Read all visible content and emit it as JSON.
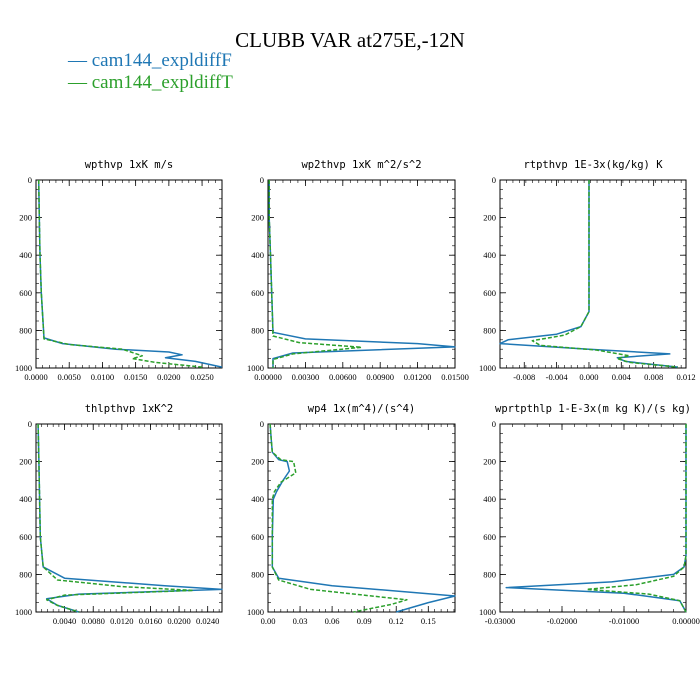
{
  "title": "CLUBB VAR at275E,-12N",
  "legend": [
    {
      "label": "cam144_expldiffF",
      "color": "#1f77b4",
      "dash": "solid"
    },
    {
      "label": "cam144_expldiffT",
      "color": "#2ca02c",
      "dash": "dashed"
    }
  ],
  "chart_data": [
    {
      "type": "line",
      "title": "wpthvp  1xK m/s",
      "xlim": [
        0,
        0.028
      ],
      "ylim": [
        1000,
        0
      ],
      "xticks": [
        0,
        0.005,
        0.01,
        0.015,
        0.02,
        0.025
      ],
      "xtick_labels": [
        "0.0000",
        "0.0050",
        "0.0100",
        "0.0150",
        "0.0200",
        "0.0250"
      ],
      "yticks": [
        0,
        200,
        400,
        600,
        800,
        1000
      ],
      "ytick_labels": [
        "0",
        "200",
        "400",
        "600",
        "800",
        "1000"
      ],
      "series": [
        {
          "name": "cam144_expldiffF",
          "x": [
            0.0004,
            0.0005,
            0.0006,
            0.0008,
            0.0012,
            0.004,
            0.012,
            0.02,
            0.022,
            0.0195,
            0.024,
            0.028
          ],
          "y": [
            0,
            200,
            400,
            600,
            840,
            870,
            900,
            915,
            930,
            945,
            965,
            995
          ]
        },
        {
          "name": "cam144_expldiffT",
          "x": [
            0.0004,
            0.0005,
            0.0006,
            0.0008,
            0.0012,
            0.005,
            0.013,
            0.016,
            0.0145,
            0.018,
            0.025
          ],
          "y": [
            0,
            200,
            400,
            600,
            845,
            875,
            900,
            935,
            950,
            970,
            995
          ]
        }
      ]
    },
    {
      "type": "line",
      "title": "wp2thvp  1xK m^2/s^2",
      "xlim": [
        0,
        0.015
      ],
      "ylim": [
        1000,
        0
      ],
      "xticks": [
        0,
        0.003,
        0.006,
        0.009,
        0.012,
        0.015
      ],
      "xtick_labels": [
        "0.00000",
        "0.00300",
        "0.00600",
        "0.00900",
        "0.01200",
        "0.01500"
      ],
      "yticks": [
        0,
        200,
        400,
        600,
        800,
        1000
      ],
      "ytick_labels": [
        "0",
        "200",
        "400",
        "600",
        "800",
        "1000"
      ],
      "series": [
        {
          "name": "cam144_expldiffF",
          "x": [
            0.0001,
            0.0001,
            0.0002,
            0.0003,
            0.0004,
            0.003,
            0.012,
            0.015,
            0.002,
            0.0004,
            0.0004
          ],
          "y": [
            0,
            200,
            400,
            600,
            810,
            845,
            870,
            888,
            920,
            950,
            1000
          ]
        },
        {
          "name": "cam144_expldiffT",
          "x": [
            0.0001,
            0.0001,
            0.0002,
            0.0003,
            0.0004,
            0.0025,
            0.0075,
            0.002,
            0.0004,
            0.0004
          ],
          "y": [
            0,
            200,
            400,
            600,
            830,
            865,
            890,
            925,
            955,
            1000
          ]
        }
      ]
    },
    {
      "type": "line",
      "title": "rtpthvp  1E-3x(kg/kg) K",
      "xlim": [
        -0.011,
        0.012
      ],
      "ylim": [
        1000,
        0
      ],
      "xticks": [
        -0.008,
        -0.004,
        0,
        0.004,
        0.008,
        0.012
      ],
      "xtick_labels": [
        "-0.008",
        "-0.004",
        "0.000",
        "0.004",
        "0.008",
        "0.012"
      ],
      "yticks": [
        0,
        200,
        400,
        600,
        800,
        1000
      ],
      "ytick_labels": [
        "0",
        "200",
        "400",
        "600",
        "800",
        "1000"
      ],
      "series": [
        {
          "name": "cam144_expldiffF",
          "x": [
            0,
            0,
            0,
            0,
            -0.001,
            -0.004,
            -0.01,
            -0.011,
            0.0,
            0.01,
            0.0035,
            0.0045,
            0.011
          ],
          "y": [
            0,
            200,
            400,
            700,
            780,
            820,
            850,
            870,
            900,
            925,
            945,
            965,
            995
          ]
        },
        {
          "name": "cam144_expldiffT",
          "x": [
            0,
            0,
            0,
            0,
            -0.001,
            -0.003,
            -0.007,
            -0.006,
            0.001,
            0.005,
            0.0035,
            0.005,
            0.011
          ],
          "y": [
            0,
            200,
            400,
            700,
            780,
            825,
            855,
            880,
            905,
            935,
            950,
            970,
            995
          ]
        }
      ]
    },
    {
      "type": "line",
      "title": "thlpthvp  1xK^2",
      "xlim": [
        0,
        0.026
      ],
      "ylim": [
        1000,
        0
      ],
      "xticks": [
        0.004,
        0.008,
        0.012,
        0.016,
        0.02,
        0.024
      ],
      "xtick_labels": [
        "0.0040",
        "0.0080",
        "0.0120",
        "0.0160",
        "0.0200",
        "0.0240"
      ],
      "yticks": [
        0,
        200,
        400,
        600,
        800,
        1000
      ],
      "ytick_labels": [
        "0",
        "200",
        "400",
        "600",
        "800",
        "1000"
      ],
      "series": [
        {
          "name": "cam144_expldiffF",
          "x": [
            0.0003,
            0.0004,
            0.0005,
            0.0006,
            0.001,
            0.004,
            0.018,
            0.026,
            0.006,
            0.0015,
            0.003,
            0.006
          ],
          "y": [
            0,
            200,
            400,
            600,
            760,
            820,
            860,
            880,
            905,
            930,
            965,
            1000
          ]
        },
        {
          "name": "cam144_expldiffT",
          "x": [
            0.0003,
            0.0004,
            0.0005,
            0.0006,
            0.001,
            0.003,
            0.012,
            0.022,
            0.004,
            0.0015,
            0.003,
            0.006
          ],
          "y": [
            0,
            200,
            400,
            600,
            760,
            830,
            865,
            885,
            910,
            935,
            965,
            1000
          ]
        }
      ]
    },
    {
      "type": "line",
      "title": "wp4  1x(m^4)/(s^4)",
      "xlim": [
        0,
        0.175
      ],
      "ylim": [
        1000,
        0
      ],
      "xticks": [
        0,
        0.03,
        0.06,
        0.09,
        0.12,
        0.15
      ],
      "xtick_labels": [
        "0.00",
        "0.03",
        "0.06",
        "0.09",
        "0.12",
        "0.15"
      ],
      "yticks": [
        0,
        200,
        400,
        600,
        800,
        1000
      ],
      "ytick_labels": [
        "0",
        "200",
        "400",
        "600",
        "800",
        "1000"
      ],
      "series": [
        {
          "name": "cam144_expldiffF",
          "x": [
            0.002,
            0.003,
            0.004,
            0.01,
            0.018,
            0.02,
            0.014,
            0.008,
            0.005,
            0.004,
            0.004,
            0.01,
            0.06,
            0.175,
            0.15,
            0.12
          ],
          "y": [
            0,
            80,
            150,
            190,
            200,
            250,
            300,
            360,
            400,
            600,
            760,
            820,
            860,
            915,
            950,
            1000
          ]
        },
        {
          "name": "cam144_expldiffT",
          "x": [
            0.002,
            0.003,
            0.004,
            0.012,
            0.024,
            0.026,
            0.012,
            0.006,
            0.004,
            0.004,
            0.004,
            0.01,
            0.04,
            0.13,
            0.115,
            0.08
          ],
          "y": [
            0,
            80,
            150,
            190,
            200,
            260,
            310,
            360,
            400,
            600,
            760,
            830,
            880,
            935,
            960,
            1000
          ]
        }
      ]
    },
    {
      "type": "line",
      "title": "wprtpthlp  1-E-3x(m kg K)/(s kg)",
      "xlim": [
        -0.03,
        0
      ],
      "ylim": [
        1000,
        0
      ],
      "xticks": [
        -0.03,
        -0.02,
        -0.01,
        0
      ],
      "xtick_labels": [
        "-0.03000",
        "-0.02000",
        "-0.01000",
        "0.00000"
      ],
      "yticks": [
        0,
        200,
        400,
        600,
        800,
        1000
      ],
      "ytick_labels": [
        "0",
        "200",
        "400",
        "600",
        "800",
        "1000"
      ],
      "series": [
        {
          "name": "cam144_expldiffF",
          "x": [
            0,
            0,
            0,
            -0.0003,
            -0.002,
            -0.012,
            -0.029,
            -0.01,
            -0.001,
            0
          ],
          "y": [
            0,
            400,
            700,
            760,
            800,
            840,
            870,
            900,
            940,
            1000
          ]
        },
        {
          "name": "cam144_expldiffT",
          "x": [
            0,
            0,
            0,
            -0.0003,
            -0.002,
            -0.008,
            -0.016,
            -0.006,
            -0.001,
            0
          ],
          "y": [
            0,
            400,
            700,
            760,
            810,
            855,
            880,
            905,
            940,
            1000
          ]
        }
      ]
    }
  ]
}
